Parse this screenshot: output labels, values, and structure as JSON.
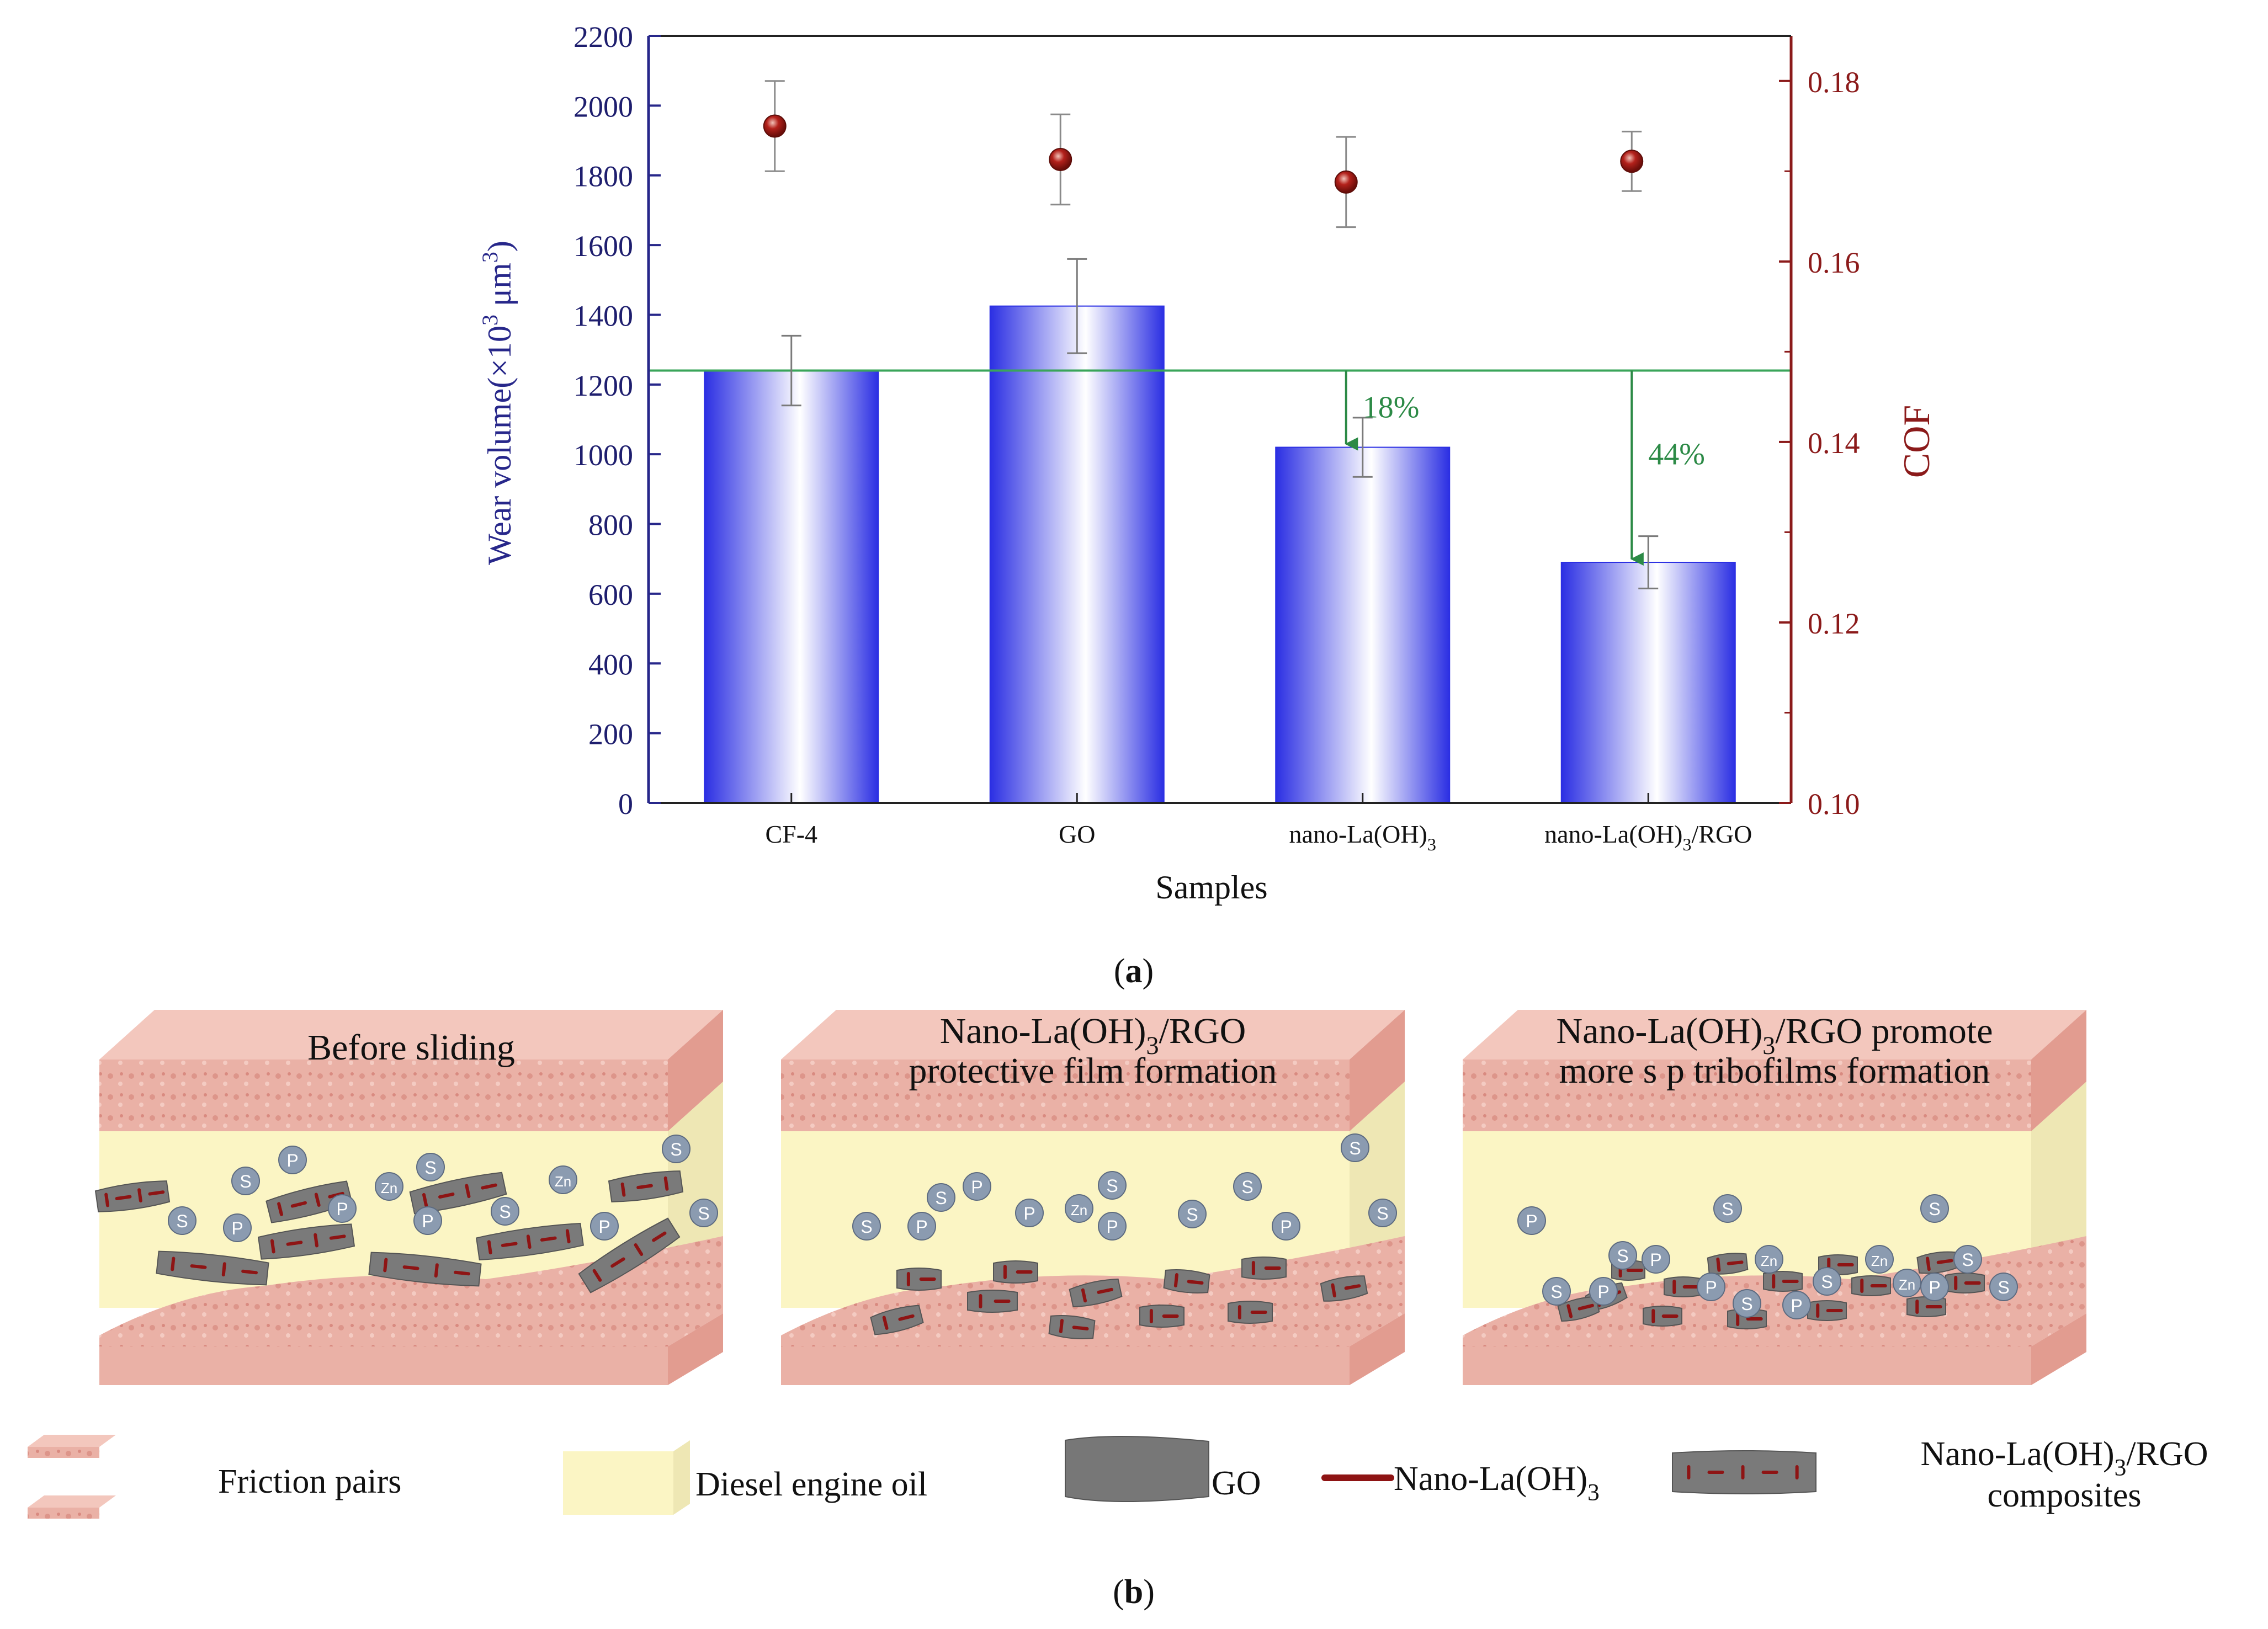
{
  "chart_data": {
    "type": "bar",
    "title": "",
    "categories": [
      "CF-4",
      "GO",
      "nano-La(OH)3",
      "nano-La(OH)3/RGO"
    ],
    "category_labels": [
      {
        "base": "CF-4",
        "sub": "",
        "tail": ""
      },
      {
        "base": "GO",
        "sub": "",
        "tail": ""
      },
      {
        "base": "nano-La(OH)",
        "sub": "3",
        "tail": ""
      },
      {
        "base": "nano-La(OH)",
        "sub": "3",
        "tail": "/RGO"
      }
    ],
    "xlabel": "Samples",
    "ylabel": {
      "prefix": "Wear volume(×10",
      "sup1": "3",
      "mid": " μm",
      "sup2": "3",
      "suffix": ")"
    },
    "y2label": "COF",
    "ylim": [
      0,
      2200
    ],
    "y2lim": [
      0.1,
      0.185
    ],
    "yticks": [
      "0",
      "200",
      "400",
      "600",
      "800",
      "1000",
      "1200",
      "1400",
      "1600",
      "1800",
      "2000",
      "2200"
    ],
    "y2ticks": [
      "0.10",
      "0.12",
      "0.14",
      "0.16",
      "0.18"
    ],
    "series": [
      {
        "name": "Wear volume",
        "axis": "left",
        "kind": "bar",
        "values": [
          1240,
          1425,
          1020,
          690
        ],
        "error": [
          100,
          135,
          85,
          75
        ]
      },
      {
        "name": "COF",
        "axis": "right",
        "kind": "scatter",
        "values": [
          0.175,
          0.1713,
          0.1688,
          0.1711
        ],
        "error": [
          0.005,
          0.005,
          0.005,
          0.0033
        ]
      }
    ],
    "reference_line": 1240,
    "annotations": [
      {
        "label": "18%",
        "category": 2
      },
      {
        "label": "44%",
        "category": 3
      }
    ],
    "colors": {
      "bar": "#2a2ee0",
      "cof": "#9c1b16",
      "left_axis": "#27278a",
      "right_axis": "#8b1a1a",
      "ref": "#3aa55a",
      "annot": "#2c8a46"
    }
  },
  "panel_a_label": "a",
  "panel_b_label": "b",
  "diagram": {
    "panels": [
      {
        "title_lines": [
          {
            "text": "Before sliding",
            "sub": "",
            "tail": ""
          }
        ]
      },
      {
        "title_lines": [
          {
            "text": "Nano-La(OH)",
            "sub": "3",
            "tail": "/RGO"
          },
          {
            "text": "protective  film formation",
            "sub": "",
            "tail": ""
          }
        ]
      },
      {
        "title_lines": [
          {
            "text": "Nano-La(OH)",
            "sub": "3",
            "tail": "/RGO promote"
          },
          {
            "text": "more s p tribofilms formation",
            "sub": "",
            "tail": ""
          }
        ]
      }
    ],
    "ion_labels": [
      "S",
      "P",
      "Zn"
    ],
    "legend": [
      {
        "label": "Friction pairs",
        "sub": "",
        "tail": ""
      },
      {
        "label": "Diesel engine oil",
        "sub": "",
        "tail": ""
      },
      {
        "label": "GO",
        "sub": "",
        "tail": ""
      },
      {
        "label": "Nano-La(OH)",
        "sub": "3",
        "tail": ""
      },
      {
        "label": "Nano-La(OH)",
        "sub": "3",
        "tail": "/RGO",
        "line2": "composites"
      }
    ],
    "colors": {
      "plate": "#eeb8ae",
      "plate_side": "#e29c90",
      "oil": "#fbf5c4",
      "go": "#7a7a7a",
      "la": "#8e1414",
      "ion": "#8b9bb0"
    }
  }
}
